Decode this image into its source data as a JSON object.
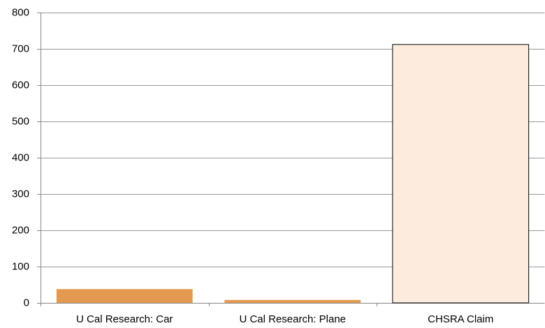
{
  "chart_data": {
    "type": "bar",
    "categories": [
      "U Cal Research: Car",
      "U Cal Research: Plane",
      "CHSRA Claim"
    ],
    "values": [
      38,
      8,
      712
    ],
    "colors": [
      "#e39a50",
      "#e39a50",
      "#fdebdd"
    ],
    "edgecolors": [
      "none",
      "none",
      "#000000"
    ],
    "ylim": [
      0,
      800
    ],
    "yticks": [
      0,
      100,
      200,
      300,
      400,
      500,
      600,
      700,
      800
    ],
    "grid": true
  }
}
